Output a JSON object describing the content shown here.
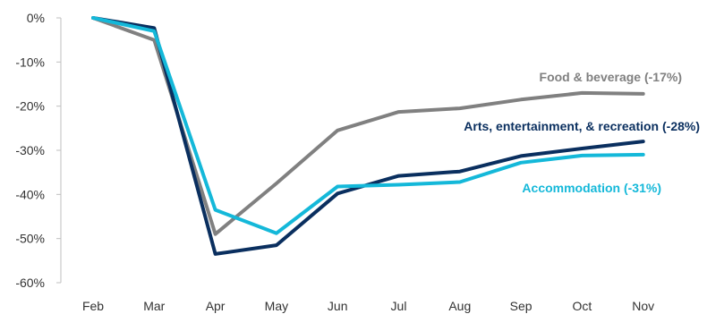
{
  "chart_data": {
    "type": "line",
    "title": "",
    "xlabel": "",
    "ylabel": "",
    "categories": [
      "Feb",
      "Mar",
      "Apr",
      "May",
      "Jun",
      "Jul",
      "Aug",
      "Sep",
      "Oct",
      "Nov"
    ],
    "y_ticks": [
      "0%",
      "-10%",
      "-20%",
      "-30%",
      "-40%",
      "-50%",
      "-60%"
    ],
    "ylim": [
      -60,
      0
    ],
    "grid": false,
    "legend": "inline labels at line ends",
    "series": [
      {
        "name": "Food & beverage (-17%)",
        "color": "#808080",
        "values": [
          0,
          -5,
          -49,
          -37.5,
          -25.5,
          -21.3,
          -20.5,
          -18.5,
          -17,
          -17.2
        ]
      },
      {
        "name": "Arts, entertainment, & recreation (-28%)",
        "color": "#0a2f5f",
        "values": [
          0,
          -2.3,
          -53.5,
          -51.5,
          -39.8,
          -35.8,
          -34.8,
          -31.3,
          -29.6,
          -28
        ]
      },
      {
        "name": "Accommodation (-31%)",
        "color": "#14b8d9",
        "values": [
          0,
          -3,
          -43.5,
          -48.8,
          -38.2,
          -37.8,
          -37.2,
          -32.8,
          -31.2,
          -31
        ]
      }
    ]
  }
}
